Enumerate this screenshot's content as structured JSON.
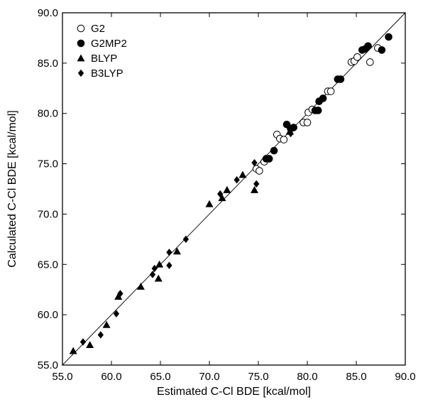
{
  "chart_data": {
    "type": "scatter",
    "xlabel": "Estimated C-Cl BDE [kcal/mol]",
    "ylabel": "Calculated C-Cl BDE [kcal/mol]",
    "xlim": [
      55.0,
      90.0
    ],
    "ylim": [
      55.0,
      90.0
    ],
    "xticks": [
      "55.0",
      "60.0",
      "65.0",
      "70.0",
      "75.0",
      "80.0",
      "85.0",
      "90.0"
    ],
    "yticks": [
      "55.0",
      "60.0",
      "65.0",
      "70.0",
      "75.0",
      "80.0",
      "85.0",
      "90.0"
    ],
    "grid": false,
    "legend_position": "top-left",
    "reference_line": "y = x",
    "series": [
      {
        "name": "G2",
        "marker": "open-circle",
        "points": [
          [
            74.8,
            74.5
          ],
          [
            75.1,
            74.3
          ],
          [
            75.6,
            75.2
          ],
          [
            76.9,
            77.9
          ],
          [
            77.2,
            77.5
          ],
          [
            77.6,
            77.4
          ],
          [
            79.6,
            79.1
          ],
          [
            80.0,
            79.1
          ],
          [
            80.1,
            80.1
          ],
          [
            80.5,
            80.4
          ],
          [
            82.1,
            82.2
          ],
          [
            82.4,
            82.2
          ],
          [
            84.5,
            85.1
          ],
          [
            84.8,
            85.2
          ],
          [
            85.1,
            85.6
          ],
          [
            86.4,
            85.1
          ],
          [
            87.2,
            86.5
          ]
        ]
      },
      {
        "name": "G2MP2",
        "marker": "filled-circle",
        "points": [
          [
            75.8,
            75.5
          ],
          [
            76.1,
            75.5
          ],
          [
            76.6,
            76.3
          ],
          [
            77.9,
            78.9
          ],
          [
            78.3,
            78.5
          ],
          [
            78.6,
            78.6
          ],
          [
            80.8,
            80.3
          ],
          [
            81.1,
            80.3
          ],
          [
            81.2,
            81.2
          ],
          [
            81.6,
            81.5
          ],
          [
            83.1,
            83.4
          ],
          [
            83.4,
            83.4
          ],
          [
            85.6,
            86.3
          ],
          [
            85.9,
            86.4
          ],
          [
            86.2,
            86.7
          ],
          [
            87.6,
            86.3
          ],
          [
            88.3,
            87.6
          ]
        ]
      },
      {
        "name": "BLYP",
        "marker": "filled-triangle",
        "points": [
          [
            56.1,
            56.4
          ],
          [
            57.8,
            57.0
          ],
          [
            59.5,
            59.0
          ],
          [
            60.7,
            61.8
          ],
          [
            63.0,
            62.8
          ],
          [
            64.8,
            63.6
          ],
          [
            64.9,
            65.0
          ],
          [
            66.7,
            66.3
          ],
          [
            70.0,
            71.0
          ],
          [
            71.3,
            71.6
          ],
          [
            71.8,
            72.4
          ],
          [
            73.4,
            73.9
          ],
          [
            74.6,
            72.4
          ],
          [
            78.2,
            78.2
          ]
        ]
      },
      {
        "name": "B3LYP",
        "marker": "filled-diamond",
        "points": [
          [
            57.1,
            57.3
          ],
          [
            58.9,
            58.0
          ],
          [
            60.5,
            60.1
          ],
          [
            60.9,
            62.1
          ],
          [
            64.2,
            64.0
          ],
          [
            64.4,
            64.6
          ],
          [
            65.9,
            64.9
          ],
          [
            65.9,
            66.2
          ],
          [
            67.6,
            67.5
          ],
          [
            71.1,
            72.0
          ],
          [
            72.8,
            73.4
          ],
          [
            74.6,
            75.1
          ],
          [
            74.8,
            73.0
          ],
          [
            78.3,
            78.0
          ]
        ]
      }
    ]
  }
}
